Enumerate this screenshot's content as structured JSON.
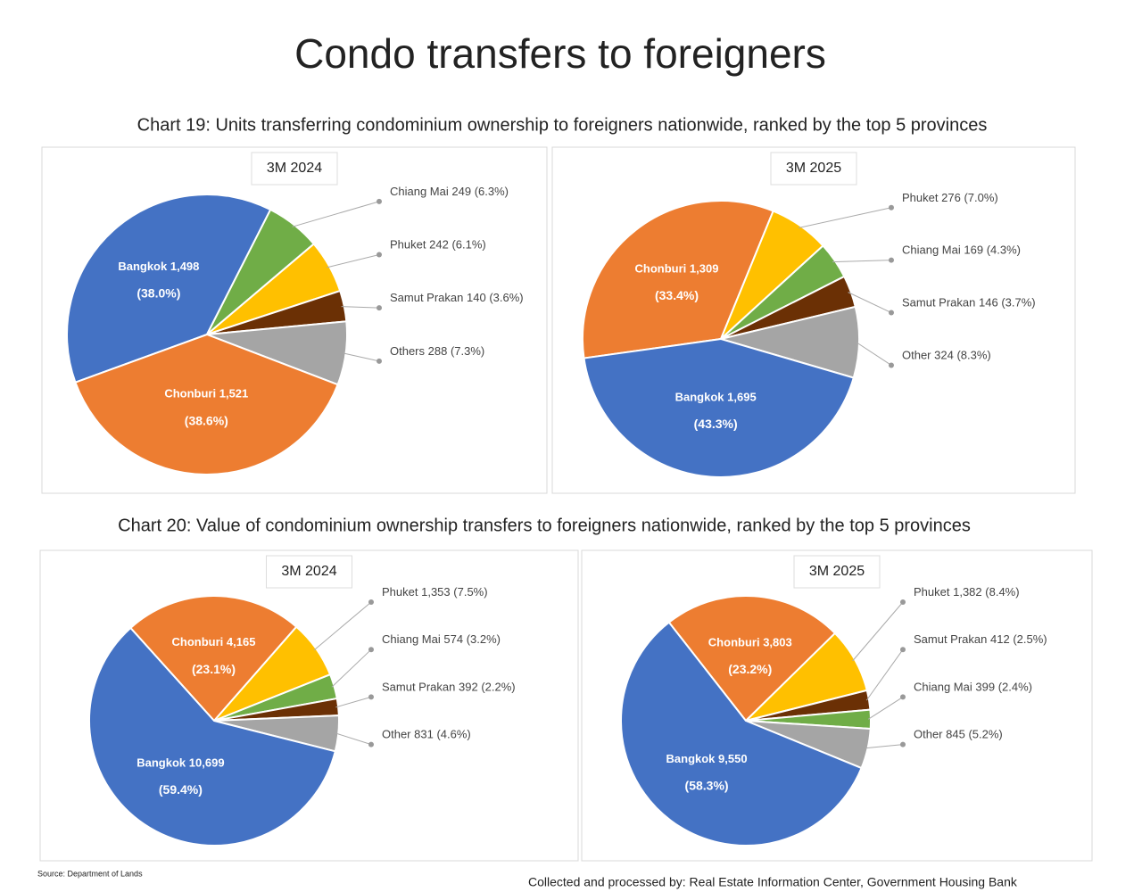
{
  "title": "Condo transfers to foreigners",
  "headings": [
    "Chart 19: Units transferring condominium ownership to foreigners nationwide, ranked by the top 5 provinces",
    "Chart 20: Value of condominium ownership transfers to foreigners nationwide, ranked by the top 5 provinces"
  ],
  "chart_data": [
    {
      "type": "pie",
      "title": "3M 2024",
      "categories": [
        "Bangkok",
        "Chiang Mai",
        "Phuket",
        "Samut Prakan",
        "Others",
        "Chonburi"
      ],
      "values": [
        1498,
        249,
        242,
        140,
        288,
        1521
      ],
      "value_labels": [
        "1,498",
        "249",
        "242",
        "140",
        "288",
        "1,521"
      ],
      "percents": [
        38.0,
        6.3,
        6.1,
        3.6,
        7.3,
        38.6
      ],
      "percent_labels": [
        "(38.0%)",
        "(6.3%)",
        "(6.1%)",
        "(3.6%)",
        "(7.3%)",
        "(38.6%)"
      ],
      "colors": [
        "#4472c4",
        "#70ad47",
        "#ffc000",
        "#6b3005",
        "#a5a5a5",
        "#ed7d31"
      ]
    },
    {
      "type": "pie",
      "title": "3M 2025",
      "categories": [
        "Chonburi",
        "Phuket",
        "Chiang Mai",
        "Samut Prakan",
        "Other",
        "Bangkok"
      ],
      "values": [
        1309,
        276,
        169,
        146,
        324,
        1695
      ],
      "value_labels": [
        "1,309",
        "276",
        "169",
        "146",
        "324",
        "1,695"
      ],
      "percents": [
        33.4,
        7.0,
        4.3,
        3.7,
        8.3,
        43.3
      ],
      "percent_labels": [
        "(33.4%)",
        "(7.0%)",
        "(4.3%)",
        "(3.7%)",
        "(8.3%)",
        "(43.3%)"
      ],
      "colors": [
        "#ed7d31",
        "#ffc000",
        "#70ad47",
        "#6b3005",
        "#a5a5a5",
        "#4472c4"
      ]
    },
    {
      "type": "pie",
      "title": "3M 2024",
      "categories": [
        "Chonburi",
        "Phuket",
        "Chiang Mai",
        "Samut Prakan",
        "Other",
        "Bangkok"
      ],
      "values": [
        4165,
        1353,
        574,
        392,
        831,
        10699
      ],
      "value_labels": [
        "4,165",
        "1,353",
        "574",
        "392",
        "831",
        "10,699"
      ],
      "percents": [
        23.1,
        7.5,
        3.2,
        2.2,
        4.6,
        59.4
      ],
      "percent_labels": [
        "(23.1%)",
        "(7.5%)",
        "(3.2%)",
        "(2.2%)",
        "(4.6%)",
        "(59.4%)"
      ],
      "colors": [
        "#ed7d31",
        "#ffc000",
        "#70ad47",
        "#6b3005",
        "#a5a5a5",
        "#4472c4"
      ]
    },
    {
      "type": "pie",
      "title": "3M 2025",
      "categories": [
        "Chonburi",
        "Phuket",
        "Samut Prakan",
        "Chiang Mai",
        "Other",
        "Bangkok"
      ],
      "values": [
        3803,
        1382,
        412,
        399,
        845,
        9550
      ],
      "value_labels": [
        "3,803",
        "1,382",
        "412",
        "399",
        "845",
        "9,550"
      ],
      "percents": [
        23.2,
        8.4,
        2.5,
        2.4,
        5.2,
        58.3
      ],
      "percent_labels": [
        "(23.2%)",
        "(8.4%)",
        "(2.5%)",
        "(2.4%)",
        "(5.2%)",
        "(58.3%)"
      ],
      "colors": [
        "#ed7d31",
        "#ffc000",
        "#6b3005",
        "#70ad47",
        "#a5a5a5",
        "#4472c4"
      ]
    }
  ],
  "source": "Source: Department of Lands",
  "credit": "Collected and processed by: Real Estate Information Center, Government Housing Bank"
}
